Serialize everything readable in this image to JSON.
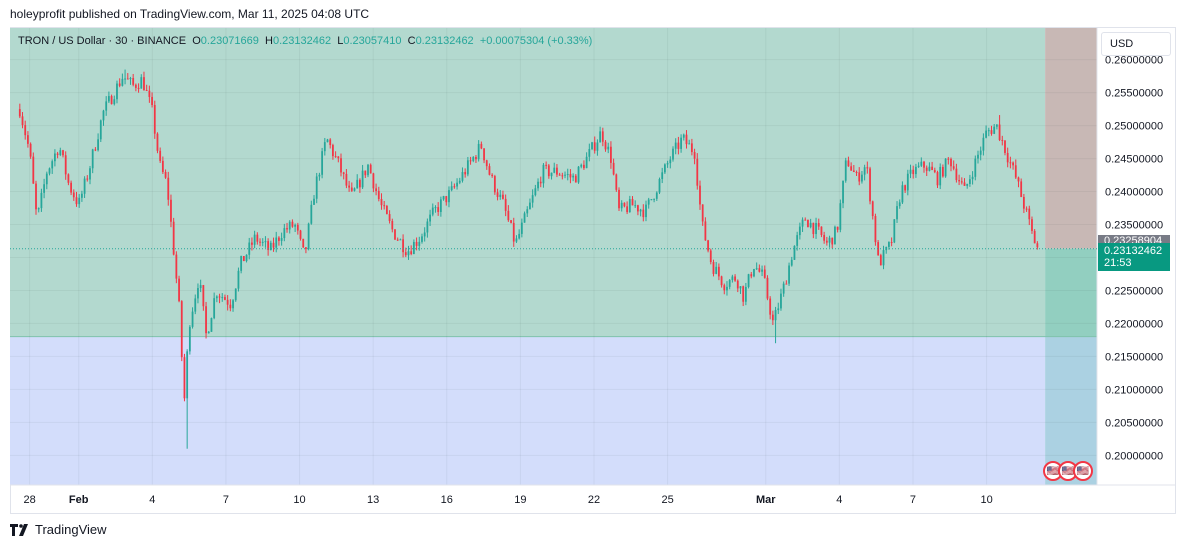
{
  "header": {
    "publish_line": "holeyprofit published on TradingView.com, Mar 11, 2025 04:08 UTC"
  },
  "legend": {
    "symbol": "TRON / US Dollar · 30 · BINANCE",
    "o_label": "O",
    "o_value": "0.23071669",
    "h_label": "H",
    "h_value": "0.23132462",
    "l_label": "L",
    "l_value": "0.23057410",
    "c_label": "C",
    "c_value": "0.23132462",
    "change": "+0.00075304 (+0.33%)"
  },
  "currency": {
    "label": "USD"
  },
  "price_tags": {
    "upper_value": "0.23258904",
    "current_value": "0.23132462",
    "countdown": "21:53"
  },
  "brand": {
    "name": "TradingView"
  },
  "colors": {
    "up": "#26a69a",
    "down": "#f23645",
    "profit_zone": "#b3d9cf",
    "risk_zone": "#d3ddfb",
    "tag_green": "#089981",
    "tag_gray": "#787b86"
  },
  "chart_data": {
    "type": "candlestick",
    "title": "TRON / US Dollar · 30 · BINANCE",
    "ylim": [
      0.1955,
      0.2648
    ],
    "y_ticks": [
      "0.26000000",
      "0.25500000",
      "0.25000000",
      "0.24500000",
      "0.24000000",
      "0.23500000",
      "0.23000000",
      "0.22500000",
      "0.22000000",
      "0.21500000",
      "0.21000000",
      "0.20500000",
      "0.20000000"
    ],
    "y_tick_values": [
      0.26,
      0.255,
      0.25,
      0.245,
      0.24,
      0.235,
      0.23,
      0.225,
      0.22,
      0.215,
      0.21,
      0.205,
      0.2
    ],
    "x_ticks": [
      "28",
      "Feb",
      "4",
      "7",
      "10",
      "13",
      "16",
      "19",
      "22",
      "25",
      "Mar",
      "4",
      "7",
      "10"
    ],
    "x_tick_days": [
      -1,
      1,
      4,
      7,
      10,
      13,
      16,
      19,
      22,
      25,
      29,
      32,
      35,
      38
    ],
    "x_range_days": [
      -1.8,
      42.5
    ],
    "last_candle_day": 40.1,
    "close_path": [
      {
        "day": -1.4,
        "price": 0.2525
      },
      {
        "day": -1.0,
        "price": 0.246
      },
      {
        "day": -0.7,
        "price": 0.2355
      },
      {
        "day": -0.3,
        "price": 0.243
      },
      {
        "day": 0.2,
        "price": 0.247
      },
      {
        "day": 0.6,
        "price": 0.241
      },
      {
        "day": 1.0,
        "price": 0.238
      },
      {
        "day": 1.4,
        "price": 0.243
      },
      {
        "day": 2.0,
        "price": 0.252
      },
      {
        "day": 2.8,
        "price": 0.2575
      },
      {
        "day": 3.2,
        "price": 0.256
      },
      {
        "day": 3.6,
        "price": 0.257
      },
      {
        "day": 4.0,
        "price": 0.252
      },
      {
        "day": 4.3,
        "price": 0.244
      },
      {
        "day": 4.6,
        "price": 0.241
      },
      {
        "day": 4.9,
        "price": 0.23
      },
      {
        "day": 5.1,
        "price": 0.222
      },
      {
        "day": 5.3,
        "price": 0.208
      },
      {
        "day": 5.5,
        "price": 0.22
      },
      {
        "day": 5.9,
        "price": 0.227
      },
      {
        "day": 6.2,
        "price": 0.218
      },
      {
        "day": 6.6,
        "price": 0.225
      },
      {
        "day": 7.2,
        "price": 0.223
      },
      {
        "day": 7.6,
        "price": 0.229
      },
      {
        "day": 8.2,
        "price": 0.233
      },
      {
        "day": 8.8,
        "price": 0.231
      },
      {
        "day": 9.3,
        "price": 0.234
      },
      {
        "day": 9.8,
        "price": 0.235
      },
      {
        "day": 10.2,
        "price": 0.23
      },
      {
        "day": 10.6,
        "price": 0.24
      },
      {
        "day": 11.1,
        "price": 0.248
      },
      {
        "day": 11.6,
        "price": 0.244
      },
      {
        "day": 12.1,
        "price": 0.239
      },
      {
        "day": 12.8,
        "price": 0.244
      },
      {
        "day": 13.3,
        "price": 0.238
      },
      {
        "day": 13.8,
        "price": 0.234
      },
      {
        "day": 14.4,
        "price": 0.231
      },
      {
        "day": 14.9,
        "price": 0.233
      },
      {
        "day": 15.5,
        "price": 0.237
      },
      {
        "day": 16.2,
        "price": 0.24
      },
      {
        "day": 16.9,
        "price": 0.244
      },
      {
        "day": 17.4,
        "price": 0.247
      },
      {
        "day": 17.8,
        "price": 0.242
      },
      {
        "day": 18.3,
        "price": 0.238
      },
      {
        "day": 18.8,
        "price": 0.232
      },
      {
        "day": 19.3,
        "price": 0.237
      },
      {
        "day": 19.9,
        "price": 0.243
      },
      {
        "day": 20.5,
        "price": 0.243
      },
      {
        "day": 21.2,
        "price": 0.242
      },
      {
        "day": 21.7,
        "price": 0.245
      },
      {
        "day": 22.3,
        "price": 0.249
      },
      {
        "day": 22.7,
        "price": 0.245
      },
      {
        "day": 23.0,
        "price": 0.237
      },
      {
        "day": 23.6,
        "price": 0.238
      },
      {
        "day": 24.1,
        "price": 0.237
      },
      {
        "day": 24.6,
        "price": 0.241
      },
      {
        "day": 25.1,
        "price": 0.245
      },
      {
        "day": 25.6,
        "price": 0.248
      },
      {
        "day": 26.1,
        "price": 0.246
      },
      {
        "day": 26.4,
        "price": 0.235
      },
      {
        "day": 26.8,
        "price": 0.229
      },
      {
        "day": 27.3,
        "price": 0.226
      },
      {
        "day": 27.8,
        "price": 0.227
      },
      {
        "day": 28.1,
        "price": 0.224
      },
      {
        "day": 28.5,
        "price": 0.229
      },
      {
        "day": 28.9,
        "price": 0.227
      },
      {
        "day": 29.3,
        "price": 0.22
      },
      {
        "day": 29.7,
        "price": 0.225
      },
      {
        "day": 30.1,
        "price": 0.231
      },
      {
        "day": 30.6,
        "price": 0.236
      },
      {
        "day": 31.1,
        "price": 0.234
      },
      {
        "day": 31.5,
        "price": 0.232
      },
      {
        "day": 31.9,
        "price": 0.234
      },
      {
        "day": 32.3,
        "price": 0.245
      },
      {
        "day": 32.7,
        "price": 0.242
      },
      {
        "day": 33.1,
        "price": 0.244
      },
      {
        "day": 33.6,
        "price": 0.229
      },
      {
        "day": 34.1,
        "price": 0.232
      },
      {
        "day": 34.5,
        "price": 0.24
      },
      {
        "day": 35.0,
        "price": 0.243
      },
      {
        "day": 35.5,
        "price": 0.244
      },
      {
        "day": 36.0,
        "price": 0.242
      },
      {
        "day": 36.5,
        "price": 0.245
      },
      {
        "day": 37.1,
        "price": 0.24
      },
      {
        "day": 37.6,
        "price": 0.245
      },
      {
        "day": 38.0,
        "price": 0.249
      },
      {
        "day": 38.4,
        "price": 0.25
      },
      {
        "day": 38.8,
        "price": 0.246
      },
      {
        "day": 39.2,
        "price": 0.242
      },
      {
        "day": 39.6,
        "price": 0.237
      },
      {
        "day": 39.9,
        "price": 0.233
      },
      {
        "day": 40.1,
        "price": 0.2313
      }
    ],
    "extremes": [
      {
        "day": 2.9,
        "high": 0.2585
      },
      {
        "day": 5.4,
        "low": 0.201
      },
      {
        "day": 29.4,
        "low": 0.217
      },
      {
        "day": 38.5,
        "high": 0.2516
      }
    ],
    "position_tool": {
      "entry": 0.218,
      "target_top": 0.2648,
      "stop_bottom": 0.1955,
      "start_day": -1.8,
      "end_day": 42.5
    },
    "current_price_line": 0.23132462
  }
}
